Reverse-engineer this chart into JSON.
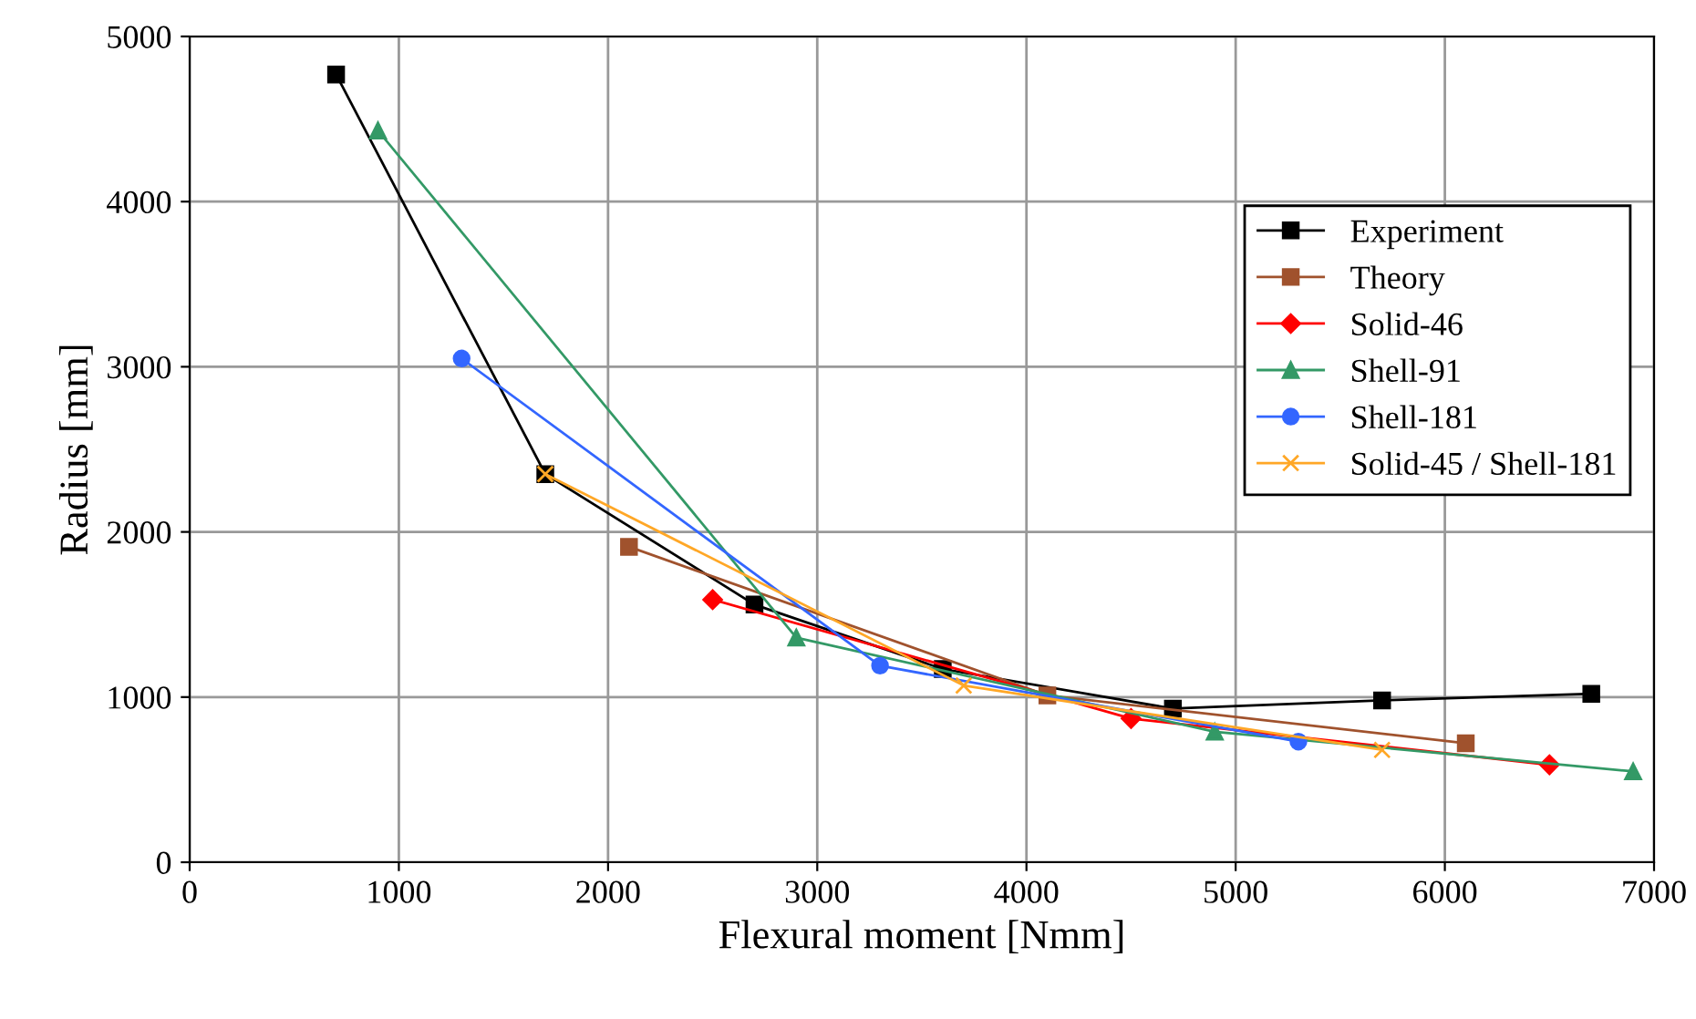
{
  "chart_data": {
    "type": "line",
    "xlabel": "Flexural moment [Nmm]",
    "ylabel": "Radius [mm]",
    "xlim": [
      0,
      7000
    ],
    "xticks": [
      0,
      1000,
      2000,
      3000,
      4000,
      5000,
      6000,
      7000
    ],
    "ylim": [
      0,
      5000
    ],
    "yticks": [
      0,
      1000,
      2000,
      3000,
      4000,
      5000
    ],
    "grid": true,
    "legend": "right",
    "series": [
      {
        "name": "Experiment",
        "color": "#000000",
        "marker": "square",
        "x": [
          700,
          1700,
          2700,
          3600,
          4700,
          5700,
          6700
        ],
        "values": [
          4770,
          2350,
          1560,
          1170,
          930,
          980,
          1020
        ]
      },
      {
        "name": "Theory",
        "color": "#a0522d",
        "marker": "square",
        "x": [
          2100,
          4100,
          6100
        ],
        "values": [
          1910,
          1010,
          720
        ]
      },
      {
        "name": "Solid-46",
        "color": "#ff0000",
        "marker": "diamond",
        "x": [
          2500,
          4500,
          6500
        ],
        "values": [
          1590,
          870,
          590
        ]
      },
      {
        "name": "Shell-91",
        "color": "#339966",
        "marker": "triangle",
        "x": [
          900,
          2900,
          4900,
          6900
        ],
        "values": [
          4430,
          1360,
          790,
          550
        ]
      },
      {
        "name": "Shell-181",
        "color": "#3366ff",
        "marker": "circle",
        "x": [
          1300,
          3300,
          5300
        ],
        "values": [
          3050,
          1190,
          730
        ]
      },
      {
        "name": "Solid-45 / Shell-181",
        "color": "#ffa726",
        "marker": "cross",
        "x": [
          1700,
          3700,
          5700
        ],
        "values": [
          2350,
          1070,
          680
        ]
      }
    ]
  }
}
